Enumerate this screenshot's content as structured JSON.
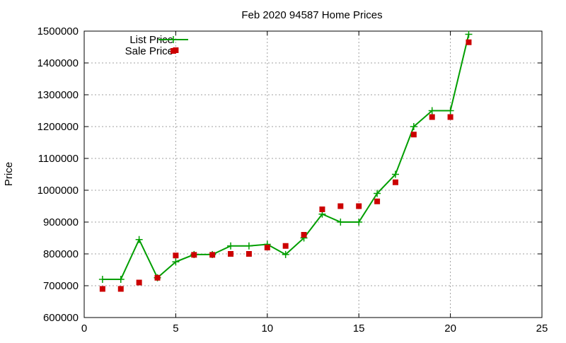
{
  "chart_data": {
    "type": "line",
    "title": "Feb 2020 94587 Home Prices",
    "xlabel": "",
    "ylabel": "Price",
    "xlim": [
      0,
      25
    ],
    "ylim": [
      600000,
      1500000
    ],
    "xticks": [
      0,
      5,
      10,
      15,
      20,
      25
    ],
    "yticks": [
      600000,
      700000,
      800000,
      900000,
      1000000,
      1100000,
      1200000,
      1300000,
      1400000,
      1500000
    ],
    "grid": true,
    "legend_position": "top-left",
    "series": [
      {
        "name": "List Price",
        "style": "line-with-plus-markers",
        "color": "#009e00",
        "x": [
          1,
          2,
          3,
          4,
          5,
          6,
          7,
          8,
          9,
          10,
          11,
          12,
          13,
          14,
          15,
          16,
          17,
          18,
          19,
          20,
          21
        ],
        "y": [
          720000,
          720000,
          845000,
          725000,
          775000,
          798000,
          798000,
          825000,
          825000,
          830000,
          798000,
          850000,
          925000,
          900000,
          900000,
          990000,
          1050000,
          1200000,
          1250000,
          1250000,
          1490000
        ]
      },
      {
        "name": "Sale Price",
        "style": "square-markers",
        "color": "#cc0000",
        "x": [
          1,
          2,
          3,
          4,
          5,
          5,
          6,
          7,
          8,
          9,
          10,
          11,
          12,
          13,
          14,
          15,
          16,
          17,
          18,
          19,
          20,
          21
        ],
        "y": [
          690000,
          690000,
          710000,
          725000,
          1440000,
          795000,
          797000,
          797000,
          800000,
          800000,
          820000,
          825000,
          860000,
          940000,
          950000,
          950000,
          965000,
          1025000,
          1175000,
          1230000,
          1230000,
          1465000
        ]
      }
    ]
  }
}
